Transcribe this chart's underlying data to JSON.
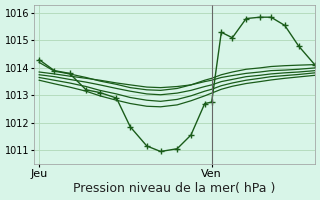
{
  "bg_color": "#d8f5e8",
  "grid_color": "#b0d8b8",
  "line_color": "#1a5c1a",
  "marker_color": "#1a5c1a",
  "xlabel": "Pression niveau de la mer( hPa )",
  "xlabel_fontsize": 9,
  "ylim": [
    1010.5,
    1016.3
  ],
  "yticks": [
    1011,
    1012,
    1013,
    1014,
    1015,
    1016
  ],
  "xtick_labels": [
    "Jeu",
    "Ven"
  ],
  "xtick_positions": [
    0.0,
    0.625
  ],
  "vline_x": 0.625,
  "xlim": [
    -0.02,
    1.0
  ],
  "series": [
    {
      "x": [
        0.0,
        0.055,
        0.11,
        0.17,
        0.22,
        0.28,
        0.33,
        0.39,
        0.44,
        0.5,
        0.55,
        0.6,
        0.625,
        0.66,
        0.7,
        0.75,
        0.8,
        0.84,
        0.89,
        0.94,
        1.0
      ],
      "y": [
        1014.3,
        1013.9,
        1013.8,
        1013.2,
        1013.1,
        1012.9,
        1011.85,
        1011.15,
        1010.95,
        1011.05,
        1011.55,
        1012.7,
        1012.75,
        1015.3,
        1015.1,
        1015.8,
        1015.85,
        1015.85,
        1015.55,
        1014.8,
        1014.1
      ],
      "with_markers": true
    },
    {
      "x": [
        0.0,
        0.055,
        0.11,
        0.17,
        0.22,
        0.28,
        0.33,
        0.39,
        0.44,
        0.5,
        0.55,
        0.6,
        0.625,
        0.66,
        0.7,
        0.75,
        0.8,
        0.84,
        0.89,
        0.94,
        1.0
      ],
      "y": [
        1013.85,
        1013.78,
        1013.7,
        1013.62,
        1013.55,
        1013.45,
        1013.38,
        1013.3,
        1013.28,
        1013.32,
        1013.38,
        1013.5,
        1013.55,
        1013.65,
        1013.72,
        1013.8,
        1013.85,
        1013.9,
        1013.92,
        1013.95,
        1014.0
      ],
      "with_markers": false
    },
    {
      "x": [
        0.0,
        0.055,
        0.11,
        0.17,
        0.22,
        0.28,
        0.33,
        0.39,
        0.44,
        0.5,
        0.55,
        0.6,
        0.625,
        0.66,
        0.7,
        0.75,
        0.8,
        0.84,
        0.89,
        0.94,
        1.0
      ],
      "y": [
        1013.75,
        1013.68,
        1013.58,
        1013.48,
        1013.38,
        1013.25,
        1013.15,
        1013.05,
        1013.02,
        1013.08,
        1013.18,
        1013.32,
        1013.38,
        1013.5,
        1013.58,
        1013.68,
        1013.73,
        1013.78,
        1013.82,
        1013.85,
        1013.9
      ],
      "with_markers": false
    },
    {
      "x": [
        0.0,
        0.055,
        0.11,
        0.17,
        0.22,
        0.28,
        0.33,
        0.39,
        0.44,
        0.5,
        0.55,
        0.6,
        0.625,
        0.66,
        0.7,
        0.75,
        0.8,
        0.84,
        0.89,
        0.94,
        1.0
      ],
      "y": [
        1013.65,
        1013.55,
        1013.45,
        1013.32,
        1013.18,
        1013.05,
        1012.92,
        1012.82,
        1012.78,
        1012.85,
        1012.98,
        1013.15,
        1013.22,
        1013.35,
        1013.45,
        1013.55,
        1013.62,
        1013.68,
        1013.72,
        1013.76,
        1013.82
      ],
      "with_markers": false
    },
    {
      "x": [
        0.0,
        0.055,
        0.11,
        0.17,
        0.22,
        0.28,
        0.33,
        0.39,
        0.44,
        0.5,
        0.55,
        0.6,
        0.625,
        0.66,
        0.7,
        0.75,
        0.8,
        0.84,
        0.89,
        0.94,
        1.0
      ],
      "y": [
        1013.55,
        1013.42,
        1013.3,
        1013.15,
        1012.98,
        1012.82,
        1012.7,
        1012.6,
        1012.58,
        1012.65,
        1012.8,
        1012.98,
        1013.08,
        1013.22,
        1013.33,
        1013.43,
        1013.5,
        1013.56,
        1013.62,
        1013.67,
        1013.73
      ],
      "with_markers": false
    },
    {
      "x": [
        0.0,
        0.055,
        0.11,
        0.17,
        0.22,
        0.28,
        0.33,
        0.39,
        0.44,
        0.5,
        0.55,
        0.6,
        0.625,
        0.66,
        0.7,
        0.75,
        0.8,
        0.84,
        0.89,
        0.94,
        1.0
      ],
      "y": [
        1014.2,
        1013.88,
        1013.78,
        1013.65,
        1013.52,
        1013.4,
        1013.28,
        1013.2,
        1013.18,
        1013.25,
        1013.38,
        1013.55,
        1013.62,
        1013.75,
        1013.85,
        1013.95,
        1014.0,
        1014.05,
        1014.08,
        1014.1,
        1014.12
      ],
      "with_markers": false
    }
  ]
}
